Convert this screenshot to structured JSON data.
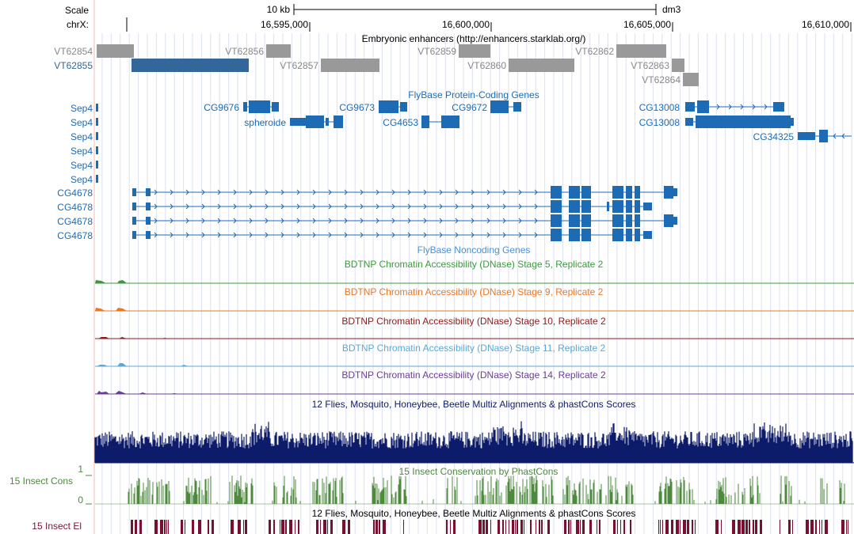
{
  "header": {
    "scale_label": "Scale",
    "chrom_label": "chrX:",
    "scale_bar_label": "10 kb",
    "assembly": "dm3",
    "positions": [
      "16,595,000",
      "16,600,000",
      "16,605,000",
      "16,610,000"
    ]
  },
  "colors": {
    "enhancer_gray": "#999999",
    "enhancer_blue": "#336699",
    "gene_blue": "#1d6bb5",
    "dnase_stage5": "#3c9a3c",
    "dnase_stage9": "#e8782a",
    "dnase_stage10": "#8b1a1a",
    "dnase_stage11": "#5aa9d6",
    "dnase_stage14": "#6a3d9a",
    "multiz": "#0d1b6b",
    "phastcons": "#4c8a3c",
    "elements": "#7a1030",
    "noncoding_title": "#4a90d6"
  },
  "tracks": {
    "enhancers": {
      "title": "Embryonic enhancers (http://enhancers.starklab.org/)",
      "items": [
        {
          "name": "VT62854",
          "color": "gray"
        },
        {
          "name": "VT62855",
          "color": "blue"
        },
        {
          "name": "VT62856",
          "color": "gray"
        },
        {
          "name": "VT62857",
          "color": "gray"
        },
        {
          "name": "VT62859",
          "color": "gray"
        },
        {
          "name": "VT62860",
          "color": "gray"
        },
        {
          "name": "VT62862",
          "color": "gray"
        },
        {
          "name": "VT62863",
          "color": "gray"
        },
        {
          "name": "VT62864",
          "color": "gray"
        }
      ]
    },
    "coding_genes": {
      "title": "FlyBase Protein-Coding Genes",
      "labels": [
        "Sep4",
        "Sep4",
        "Sep4",
        "Sep4",
        "Sep4",
        "Sep4",
        "CG9676",
        "spheroide",
        "CG9673",
        "CG4653",
        "CG9672",
        "CG13008",
        "CG13008",
        "CG34325",
        "CG4678",
        "CG4678",
        "CG4678",
        "CG4678"
      ]
    },
    "noncoding_genes": {
      "title": "FlyBase Noncoding Genes"
    },
    "dnase": [
      {
        "title": "BDTNP Chromatin Accessibility (DNase) Stage 5, Replicate 2",
        "color": "dnase_stage5"
      },
      {
        "title": "BDTNP Chromatin Accessibility (DNase) Stage 9, Replicate 2",
        "color": "dnase_stage9"
      },
      {
        "title": "BDTNP Chromatin Accessibility (DNase) Stage 10, Replicate 2",
        "color": "dnase_stage10"
      },
      {
        "title": "BDTNP Chromatin Accessibility (DNase) Stage 11, Replicate 2",
        "color": "dnase_stage11"
      },
      {
        "title": "BDTNP Chromatin Accessibility (DNase) Stage 14, Replicate 2",
        "color": "dnase_stage14"
      }
    ],
    "multiz": {
      "title": "12 Flies, Mosquito, Honeybee, Beetle Multiz Alignments & phastCons Scores"
    },
    "phastcons": {
      "title": "15 Insect Conservation by PhastCons",
      "side_label": "15 Insect Cons",
      "axis_max": "1",
      "axis_min": "0"
    },
    "elements": {
      "title": "12 Flies, Mosquito, Honeybee, Beetle Multiz Alignments & phastCons Scores",
      "side_label": "15 Insect El"
    }
  }
}
